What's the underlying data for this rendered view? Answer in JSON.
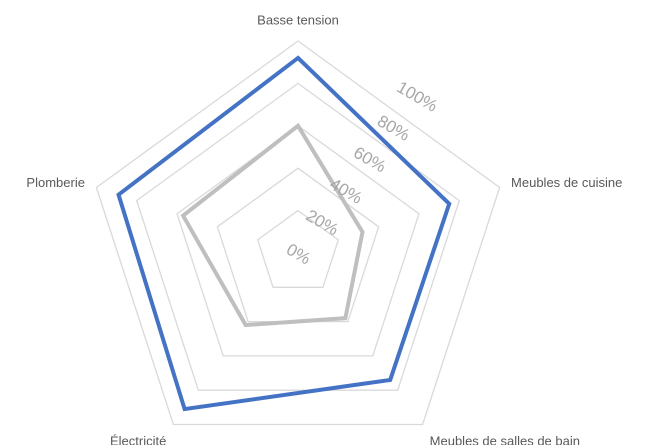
{
  "chart_data": {
    "type": "radar",
    "categories": [
      "Basse tension",
      "Meubles de cuisine",
      "Meubles de salles de bain",
      "Électricité",
      "Plomberie"
    ],
    "series": [
      {
        "color": "#4472c4",
        "values": [
          92,
          75,
          74,
          91,
          89
        ]
      },
      {
        "color": "#bfbfbf",
        "values": [
          60,
          32,
          38,
          42,
          57
        ]
      }
    ],
    "rlim": [
      0,
      100
    ],
    "rticks": [
      {
        "value": 0,
        "label": "0%"
      },
      {
        "value": 20,
        "label": "20%"
      },
      {
        "value": 40,
        "label": "40%"
      },
      {
        "value": 60,
        "label": "60%"
      },
      {
        "value": 80,
        "label": "80%"
      },
      {
        "value": 100,
        "label": "100%"
      }
    ],
    "grid": true
  }
}
